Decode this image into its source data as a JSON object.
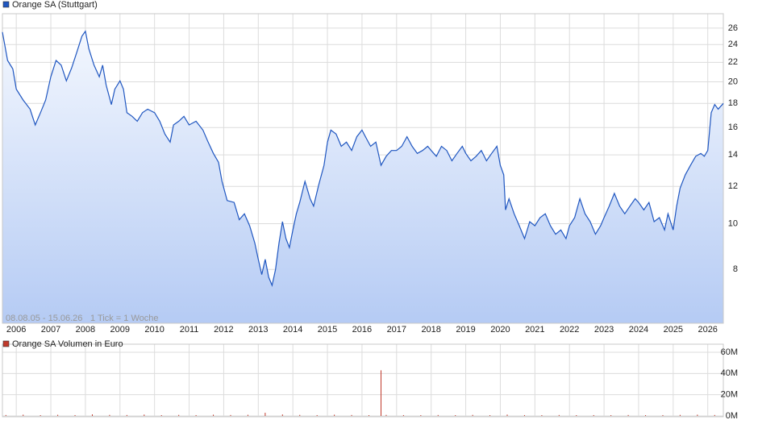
{
  "chart_data": [
    {
      "type": "area",
      "series": [
        {
          "name": "Orange SA (Stuttgart)",
          "color": "#1f56c0",
          "values": [
            25.5,
            22.2,
            21.3,
            19.3,
            18.3,
            17.5,
            16.2,
            17.2,
            18.3,
            20.5,
            22.2,
            21.7,
            20.1,
            21.4,
            23.1,
            25.0,
            25.6,
            23.5,
            21.7,
            20.5,
            21.7,
            19.7,
            17.9,
            19.3,
            20.1,
            19.3,
            17.2,
            16.9,
            16.5,
            17.2,
            17.5,
            17.2,
            16.5,
            15.5,
            14.9,
            16.2,
            16.5,
            16.9,
            16.2,
            16.5,
            15.8,
            14.9,
            14.1,
            13.5,
            12.3,
            11.2,
            11.1,
            10.2,
            10.5,
            9.9,
            9.1,
            8.4,
            7.8,
            8.4,
            7.7,
            7.4,
            8.0,
            9.1,
            10.1,
            9.3,
            8.9,
            9.7,
            10.5,
            11.1,
            12.3,
            11.3,
            10.9,
            12.1,
            13.3,
            14.9,
            15.8,
            15.5,
            14.6,
            14.9,
            14.3,
            15.3,
            15.8,
            15.3,
            14.6,
            14.9,
            13.3,
            13.9,
            14.3,
            14.3,
            14.6,
            15.3,
            14.6,
            14.1,
            14.3,
            14.6,
            14.3,
            13.9,
            14.6,
            14.3,
            13.6,
            14.1,
            14.6,
            14.1,
            13.6,
            13.9,
            14.3,
            13.6,
            14.1,
            14.6,
            13.3,
            12.7,
            10.7,
            11.3,
            10.5,
            9.9,
            9.3,
            10.1,
            9.9,
            10.3,
            10.5,
            9.9,
            9.5,
            9.7,
            9.3,
            9.9,
            10.3,
            11.3,
            10.5,
            10.1,
            9.5,
            9.9,
            10.3,
            10.9,
            11.6,
            10.9,
            10.5,
            10.9,
            11.3,
            11.1,
            10.7,
            11.1,
            10.1,
            10.3,
            9.7,
            10.5,
            9.7,
            10.9,
            11.9,
            12.7,
            13.3,
            13.9,
            14.1,
            13.9,
            14.3,
            17.2,
            17.9,
            17.5,
            18.0
          ]
        }
      ],
      "x": [
        2005.6,
        2005.75,
        2005.9,
        2006.0,
        2006.2,
        2006.4,
        2006.55,
        2006.7,
        2006.85,
        2007.0,
        2007.15,
        2007.3,
        2007.45,
        2007.6,
        2007.75,
        2007.9,
        2008.0,
        2008.1,
        2008.25,
        2008.4,
        2008.5,
        2008.6,
        2008.75,
        2008.85,
        2009.0,
        2009.1,
        2009.2,
        2009.35,
        2009.5,
        2009.65,
        2009.8,
        2010.0,
        2010.15,
        2010.3,
        2010.45,
        2010.55,
        2010.7,
        2010.85,
        2011.0,
        2011.2,
        2011.4,
        2011.55,
        2011.7,
        2011.85,
        2011.95,
        2012.1,
        2012.3,
        2012.45,
        2012.6,
        2012.75,
        2012.9,
        2013.0,
        2013.1,
        2013.2,
        2013.3,
        2013.4,
        2013.5,
        2013.6,
        2013.7,
        2013.8,
        2013.9,
        2014.0,
        2014.1,
        2014.2,
        2014.35,
        2014.5,
        2014.6,
        2014.75,
        2014.9,
        2015.0,
        2015.1,
        2015.25,
        2015.4,
        2015.55,
        2015.7,
        2015.85,
        2016.0,
        2016.1,
        2016.25,
        2016.4,
        2016.55,
        2016.7,
        2016.85,
        2017.0,
        2017.15,
        2017.3,
        2017.45,
        2017.6,
        2017.75,
        2017.9,
        2018.0,
        2018.15,
        2018.3,
        2018.45,
        2018.6,
        2018.75,
        2018.9,
        2019.0,
        2019.15,
        2019.3,
        2019.45,
        2019.6,
        2019.75,
        2019.9,
        2020.0,
        2020.1,
        2020.15,
        2020.25,
        2020.4,
        2020.55,
        2020.7,
        2020.85,
        2021.0,
        2021.15,
        2021.3,
        2021.45,
        2021.6,
        2021.75,
        2021.9,
        2022.0,
        2022.15,
        2022.3,
        2022.45,
        2022.6,
        2022.75,
        2022.9,
        2023.0,
        2023.15,
        2023.3,
        2023.45,
        2023.6,
        2023.75,
        2023.9,
        2024.0,
        2024.15,
        2024.3,
        2024.45,
        2024.6,
        2024.75,
        2024.85,
        2025.0,
        2025.1,
        2025.2,
        2025.35,
        2025.5,
        2025.65,
        2025.8,
        2025.9,
        2026.0,
        2026.1,
        2026.2,
        2026.3,
        2026.45
      ],
      "xlim": [
        2005.6,
        2026.45
      ],
      "xticks": [
        2006,
        2007,
        2008,
        2009,
        2010,
        2011,
        2012,
        2013,
        2014,
        2015,
        2016,
        2017,
        2018,
        2019,
        2020,
        2021,
        2022,
        2023,
        2024,
        2025,
        2026
      ],
      "ylim": [
        6.15,
        27.9
      ],
      "yticks": [
        8,
        10,
        12,
        14,
        16,
        18,
        20,
        22,
        24,
        26
      ],
      "log_scale": true,
      "grid": true,
      "annotations": [
        "08.08.05 - 15.06.26",
        "1 Tick = 1 Woche"
      ]
    },
    {
      "type": "bar",
      "series": [
        {
          "name": "Orange SA Volumen in Euro",
          "color": "#c0392b",
          "values": [
            900000,
            1200000,
            700000,
            1100000,
            800000,
            1500000,
            1000000,
            900000,
            1300000,
            700000,
            1000000,
            800000,
            1200000,
            900000,
            1100000,
            3000000,
            1400000,
            1000000,
            800000,
            1200000,
            900000,
            700000,
            43000000,
            1000000,
            800000,
            600000,
            900000,
            700000,
            1000000,
            600000,
            1300000,
            800000,
            700000,
            900000,
            600000,
            800000,
            700000,
            900000,
            600000,
            800000,
            1000000,
            1200000,
            900000
          ]
        }
      ],
      "x": [
        2005.7,
        2006.2,
        2006.7,
        2007.2,
        2007.7,
        2008.2,
        2008.7,
        2009.2,
        2009.7,
        2010.2,
        2010.7,
        2011.2,
        2011.7,
        2012.2,
        2012.7,
        2013.2,
        2013.7,
        2014.2,
        2014.7,
        2015.2,
        2015.7,
        2016.2,
        2016.55,
        2016.7,
        2017.2,
        2017.7,
        2018.2,
        2018.7,
        2019.2,
        2019.7,
        2020.2,
        2020.7,
        2021.2,
        2021.7,
        2022.2,
        2022.7,
        2023.2,
        2023.7,
        2024.2,
        2024.7,
        2025.2,
        2025.7,
        2026.2
      ],
      "xlim": [
        2005.6,
        2026.45
      ],
      "ylim": [
        0,
        60000000
      ],
      "yticks": [
        {
          "value": 0,
          "label": "0M"
        },
        {
          "value": 20000000,
          "label": "20M"
        },
        {
          "value": 40000000,
          "label": "40M"
        },
        {
          "value": 60000000,
          "label": "60M"
        }
      ],
      "grid": true
    }
  ]
}
